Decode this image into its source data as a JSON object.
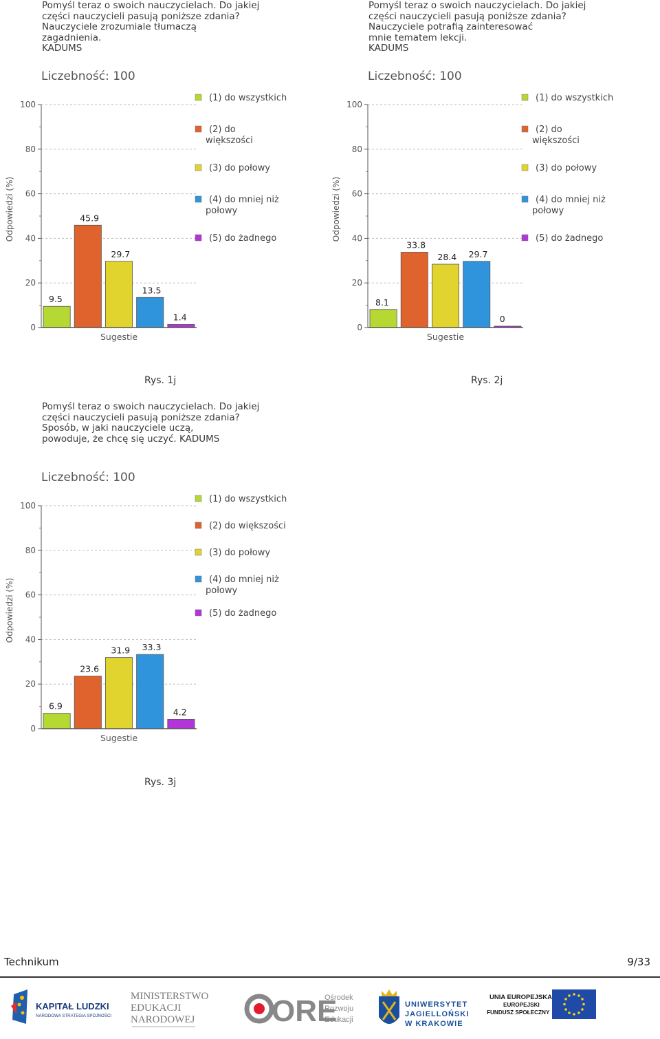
{
  "colors": {
    "c1": "#b5d832",
    "c2": "#e0622d",
    "c3": "#e1d42e",
    "c4": "#3094dc",
    "c5": "#b135d9",
    "axis": "#555555",
    "grid": "#bbbbbb",
    "text": "#444444"
  },
  "charts": [
    {
      "question": "Pomyśl teraz o swoich nauczycielach. Do jakiej\nczęści nauczycieli pasują poniższe zdania?\nNauczyciele zrozumiale tłumaczą\nzagadnienia.\n KADUMS",
      "caption": "Rys. 1j"
    },
    {
      "question": "Pomyśl teraz o swoich nauczycielach. Do jakiej\nczęści nauczycieli pasują poniższe zdania?\nNauczyciele potrafią zainteresować\nmnie tematem lekcji.\n KADUMS",
      "caption": "Rys. 2j"
    },
    {
      "question": "Pomyśl teraz o swoich nauczycielach. Do jakiej\nczęści nauczycieli pasują poniższe zdania?\nSposób, w jaki nauczyciele uczą,\npowoduje, że chcę się uczyć. KADUMS",
      "caption": "Rys. 3j"
    }
  ],
  "chart_data": [
    {
      "type": "bar",
      "title": "Liczebność: 100",
      "xlabel": "Sugestie",
      "ylabel": "Odpowiedzi (%)",
      "ylim": [
        0,
        100
      ],
      "yticks": [
        "0",
        "20",
        "40",
        "60",
        "80",
        "100"
      ],
      "categories": [
        "(1) do wszystkich",
        "(2) do większości",
        "(3) do połowy",
        "(4) do mniej niż połowy",
        "(5) do żadnego"
      ],
      "legend": [
        "(1) do wszystkich",
        "(2) do\nwiększości",
        "(3) do połowy",
        "(4) do mniej niż\npołowy",
        "(5) do żadnego"
      ],
      "values": [
        9.5,
        45.9,
        29.7,
        13.5,
        1.4
      ],
      "labels": [
        "9.5",
        "45.9",
        "29.7",
        "13.5",
        "1.4"
      ],
      "grid": true
    },
    {
      "type": "bar",
      "title": "Liczebność: 100",
      "xlabel": "Sugestie",
      "ylabel": "Odpowiedzi (%)",
      "ylim": [
        0,
        100
      ],
      "yticks": [
        "0",
        "20",
        "40",
        "60",
        "80",
        "100"
      ],
      "categories": [
        "(1) do wszystkich",
        "(2) do większości",
        "(3) do połowy",
        "(4) do mniej niż połowy",
        "(5) do żadnego"
      ],
      "legend": [
        "(1) do wszystkich",
        "(2) do\nwiększości",
        "(3) do połowy",
        "(4) do mniej niż\npołowy",
        "(5) do żadnego"
      ],
      "values": [
        8.1,
        33.8,
        28.4,
        29.7,
        0
      ],
      "labels": [
        "8.1",
        "33.8",
        "28.4",
        "29.7",
        "0"
      ],
      "grid": true
    },
    {
      "type": "bar",
      "title": "Liczebność: 100",
      "xlabel": "Sugestie",
      "ylabel": "Odpowiedzi (%)",
      "ylim": [
        0,
        100
      ],
      "yticks": [
        "0",
        "20",
        "40",
        "60",
        "80",
        "100"
      ],
      "categories": [
        "(1) do wszystkich",
        "(2) do większości",
        "(3) do połowy",
        "(4) do mniej niż połowy",
        "(5) do żadnego"
      ],
      "legend": [
        "(1) do wszystkich",
        "(2) do większości",
        "(3) do połowy",
        "(4) do mniej niż\npołowy",
        "(5) do żadnego"
      ],
      "values": [
        6.9,
        23.6,
        31.9,
        33.3,
        4.2
      ],
      "labels": [
        "6.9",
        "23.6",
        "31.9",
        "33.3",
        "4.2"
      ],
      "grid": true
    }
  ],
  "footer": {
    "left": "Technikum",
    "right": "9/33"
  },
  "logos": {
    "kapital": "KAPITAŁ LUDZKI",
    "kapital_sub": "NARODOWA STRATEGIA SPÓJNOŚCI",
    "men1": "MINISTERSTWO",
    "men2": "EDUKACJI",
    "men3": "NARODOWEJ",
    "ore": "ORE",
    "ore1": "Ośrodek",
    "ore2": "Rozwoju",
    "ore3": "Edukacji",
    "uj1": "UNIWERSYTET",
    "uj2": "JAGIELLOŃSKI",
    "uj3": "W KRAKOWIE",
    "ue1": "UNIA EUROPEJSKA",
    "ue2": "EUROPEJSKI",
    "ue3": "FUNDUSZ SPOŁECZNY"
  }
}
